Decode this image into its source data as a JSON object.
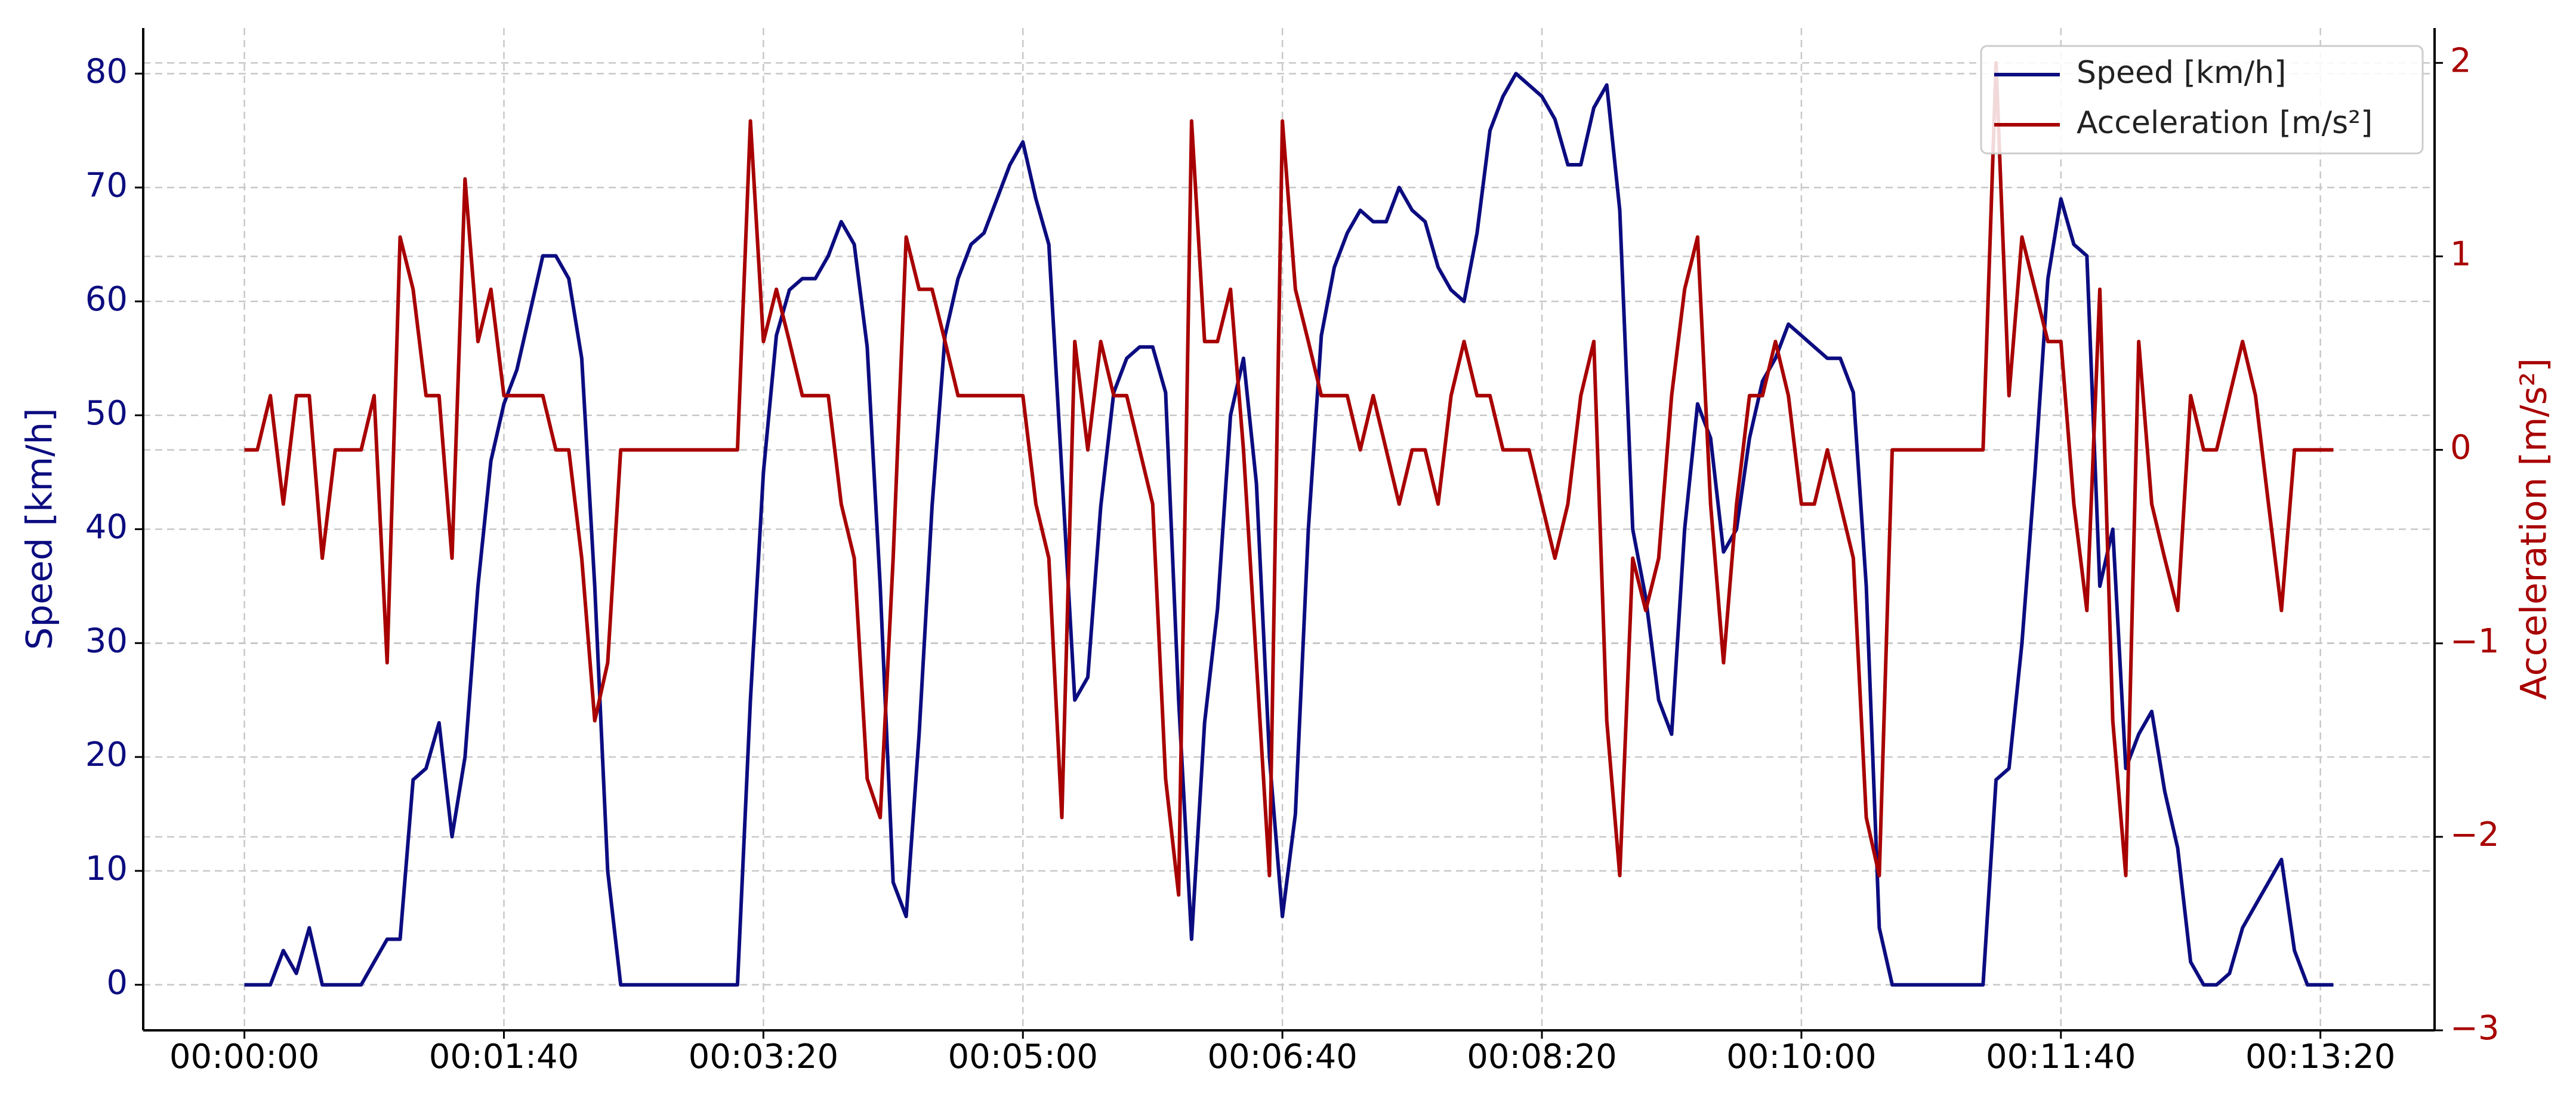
{
  "chart_data": {
    "type": "line",
    "ylabel": "Speed [km/h]",
    "y2label": "Acceleration [m/s²]",
    "x": [
      0,
      5,
      10,
      15,
      20,
      25,
      30,
      35,
      40,
      45,
      50,
      55,
      60,
      65,
      70,
      75,
      80,
      85,
      90,
      95,
      100,
      105,
      110,
      115,
      120,
      125,
      130,
      135,
      140,
      145,
      150,
      155,
      160,
      165,
      170,
      175,
      180,
      185,
      190,
      195,
      200,
      205,
      210,
      215,
      220,
      225,
      230,
      235,
      240,
      245,
      250,
      255,
      260,
      265,
      270,
      275,
      280,
      285,
      290,
      295,
      300,
      305,
      310,
      315,
      320,
      325,
      330,
      335,
      340,
      345,
      350,
      355,
      360,
      365,
      370,
      375,
      380,
      385,
      390,
      395,
      400,
      405,
      410,
      415,
      420,
      425,
      430,
      435,
      440,
      445,
      450,
      455,
      460,
      465,
      470,
      475,
      480,
      485,
      490,
      495,
      500,
      505,
      510,
      515,
      520,
      525,
      530,
      535,
      540,
      545,
      550,
      555,
      560,
      565,
      570,
      575,
      580,
      585,
      590,
      595,
      600,
      605,
      610,
      615,
      620,
      625,
      630,
      635,
      640,
      645,
      650,
      655,
      660,
      665,
      670,
      675,
      680,
      685,
      690,
      695,
      700,
      705,
      710,
      715,
      720,
      725,
      730,
      735,
      740,
      745,
      750,
      755,
      760,
      765,
      770,
      775,
      780,
      785,
      790,
      795,
      800,
      805
    ],
    "series": [
      {
        "name": "Speed [km/h]",
        "color": "#0c0c80",
        "axis": "y",
        "values": [
          0,
          0,
          0,
          3,
          1,
          5,
          0,
          0,
          0,
          0,
          2,
          4,
          4,
          18,
          19,
          23,
          13,
          20,
          35,
          46,
          51,
          54,
          59,
          64,
          64,
          62,
          55,
          35,
          10,
          0,
          0,
          0,
          0,
          0,
          0,
          0,
          0,
          0,
          0,
          25,
          45,
          57,
          61,
          62,
          62,
          64,
          67,
          65,
          56,
          35,
          9,
          6,
          22,
          42,
          57,
          62,
          65,
          66,
          69,
          72,
          74,
          69,
          65,
          45,
          25,
          27,
          42,
          52,
          55,
          56,
          56,
          52,
          25,
          4,
          23,
          33,
          50,
          55,
          44,
          20,
          6,
          15,
          40,
          57,
          63,
          66,
          68,
          67,
          67,
          70,
          68,
          67,
          63,
          61,
          60,
          66,
          75,
          78,
          80,
          79,
          78,
          76,
          72,
          72,
          77,
          79,
          68,
          40,
          34,
          25,
          22,
          40,
          51,
          48,
          38,
          40,
          48,
          53,
          55,
          58,
          57,
          56,
          55,
          55,
          52,
          35,
          5,
          0,
          0,
          0,
          0,
          0,
          0,
          0,
          0,
          18,
          19,
          30,
          45,
          62,
          69,
          65,
          64,
          35,
          40,
          19,
          22,
          24,
          17,
          12,
          2,
          0,
          0,
          1,
          5,
          7,
          9,
          11,
          3,
          0,
          0,
          0
        ]
      },
      {
        "name": "Acceleration [m/s²]",
        "color": "#a80000",
        "axis": "y2",
        "values": [
          0,
          0,
          0.28,
          -0.28,
          0.28,
          0.28,
          -0.56,
          0,
          0,
          0,
          0.28,
          -1.1,
          1.1,
          0.83,
          0.28,
          0.28,
          -0.56,
          1.4,
          0.56,
          0.83,
          0.28,
          0.28,
          0.28,
          0.28,
          0,
          0,
          -0.56,
          -1.4,
          -1.1,
          0,
          0,
          0,
          0,
          0,
          0,
          0,
          0,
          0,
          0,
          1.7,
          0.56,
          0.83,
          0.56,
          0.28,
          0.28,
          0.28,
          -0.28,
          -0.56,
          -1.7,
          -1.9,
          -0.56,
          1.1,
          0.83,
          0.83,
          0.56,
          0.28,
          0.28,
          0.28,
          0.28,
          0.28,
          0.28,
          -0.28,
          -0.56,
          -1.9,
          0.56,
          0,
          0.56,
          0.28,
          0.28,
          0,
          -0.28,
          -1.7,
          -2.3,
          1.7,
          0.56,
          0.56,
          0.83,
          0,
          -1.1,
          -2.2,
          1.7,
          0.83,
          0.56,
          0.28,
          0.28,
          0.28,
          0,
          0.28,
          0,
          -0.28,
          0,
          0,
          -0.28,
          0.28,
          0.56,
          0.28,
          0.28,
          0,
          0,
          0,
          -0.28,
          -0.56,
          -0.28,
          0.28,
          0.56,
          -1.4,
          -2.2,
          -0.56,
          -0.83,
          -0.56,
          0.28,
          0.83,
          1.1,
          -0.28,
          -1.1,
          -0.28,
          0.28,
          0.28,
          0.56,
          0.28,
          -0.28,
          -0.28,
          0,
          -0.28,
          -0.56,
          -1.9,
          -2.2,
          0,
          0,
          0,
          0,
          0,
          0,
          0,
          0,
          2,
          0.28,
          1.1,
          0.83,
          0.56,
          0.56,
          -0.28,
          -0.83,
          0.83,
          -1.4,
          -2.2,
          0.56,
          -0.28,
          -0.56,
          -0.83,
          0.28,
          0,
          0,
          0.28,
          0.56,
          0.28,
          -0.28,
          -0.83,
          0,
          0,
          0,
          0
        ]
      }
    ],
    "xlim": [
      -39,
      844
    ],
    "xticks": [
      {
        "value": 0,
        "label": "00:00:00"
      },
      {
        "value": 100,
        "label": "00:01:40"
      },
      {
        "value": 200,
        "label": "00:03:20"
      },
      {
        "value": 300,
        "label": "00:05:00"
      },
      {
        "value": 400,
        "label": "00:06:40"
      },
      {
        "value": 500,
        "label": "00:08:20"
      },
      {
        "value": 600,
        "label": "00:10:00"
      },
      {
        "value": 700,
        "label": "00:11:40"
      },
      {
        "value": 800,
        "label": "00:13:20"
      }
    ],
    "ylim": [
      -4,
      84
    ],
    "yticks": [
      0,
      10,
      20,
      30,
      40,
      50,
      60,
      70,
      80
    ],
    "y2lim": [
      -3,
      2.18
    ],
    "y2ticks": [
      {
        "value": -3,
        "label": "−3"
      },
      {
        "value": -2,
        "label": "−2"
      },
      {
        "value": -1,
        "label": "−1"
      },
      0,
      1,
      2
    ],
    "grid": true,
    "legend": "upper right"
  }
}
